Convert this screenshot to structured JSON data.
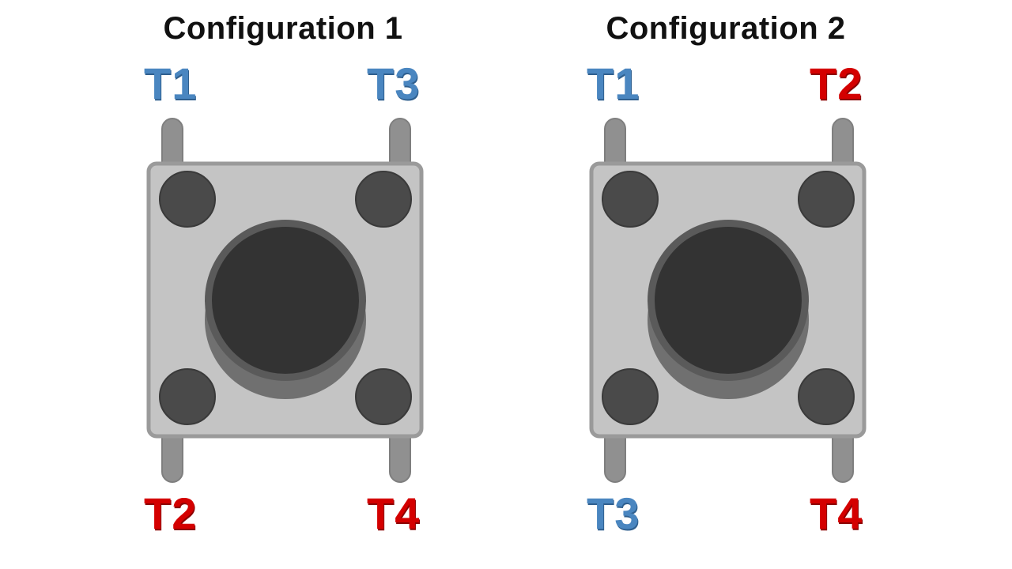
{
  "colors": {
    "connected_pair_blue": "#4a86c0",
    "connected_pair_red": "#d40000",
    "switch_body": "#c4c4c4",
    "switch_border": "#9a9a9a",
    "pins": "#909090",
    "button": "#353535"
  },
  "configurations": [
    {
      "title": "Configuration 1",
      "terminals": {
        "top_left": {
          "label": "T1",
          "color": "blue"
        },
        "top_right": {
          "label": "T3",
          "color": "blue"
        },
        "bottom_left": {
          "label": "T2",
          "color": "red"
        },
        "bottom_right": {
          "label": "T4",
          "color": "red"
        }
      }
    },
    {
      "title": "Configuration 2",
      "terminals": {
        "top_left": {
          "label": "T1",
          "color": "blue"
        },
        "top_right": {
          "label": "T2",
          "color": "red"
        },
        "bottom_left": {
          "label": "T3",
          "color": "blue"
        },
        "bottom_right": {
          "label": "T4",
          "color": "red"
        }
      }
    }
  ]
}
